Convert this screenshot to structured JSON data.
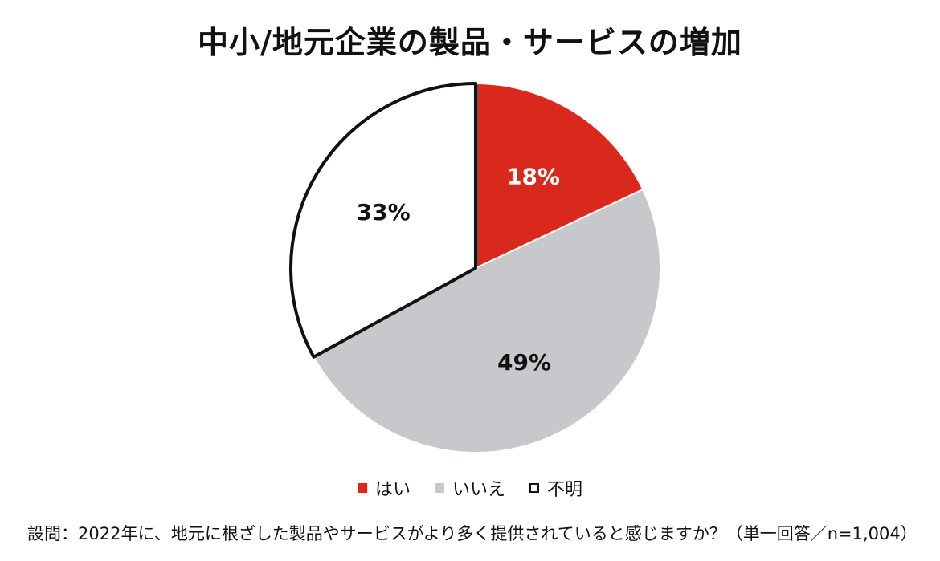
{
  "title": "中小/地元企業の製品・サービスの増加",
  "chart_data": {
    "type": "pie",
    "title": "中小/地元企業の製品・サービスの増加",
    "slices": [
      {
        "label": "はい",
        "value": 18,
        "value_label": "18%",
        "color": "#d9291c",
        "label_color": "#ffffff"
      },
      {
        "label": "いいえ",
        "value": 49,
        "value_label": "49%",
        "color": "#c6c8cb",
        "label_color": "#111111"
      },
      {
        "label": "不明",
        "value": 33,
        "value_label": "33%",
        "color": "#ffffff",
        "label_color": "#111111",
        "outlined": true
      }
    ],
    "legend_position": "bottom"
  },
  "legend": [
    {
      "label": "はい",
      "color": "#d9291c"
    },
    {
      "label": "いいえ",
      "color": "#c6c8cb"
    },
    {
      "label": "不明",
      "color": "#ffffff",
      "outline": "#111111"
    }
  ],
  "footnote": "設問：2022年に、地元に根ざした製品やサービスがより多く提供されていると感じますか？（単一回答／n=1,004）"
}
